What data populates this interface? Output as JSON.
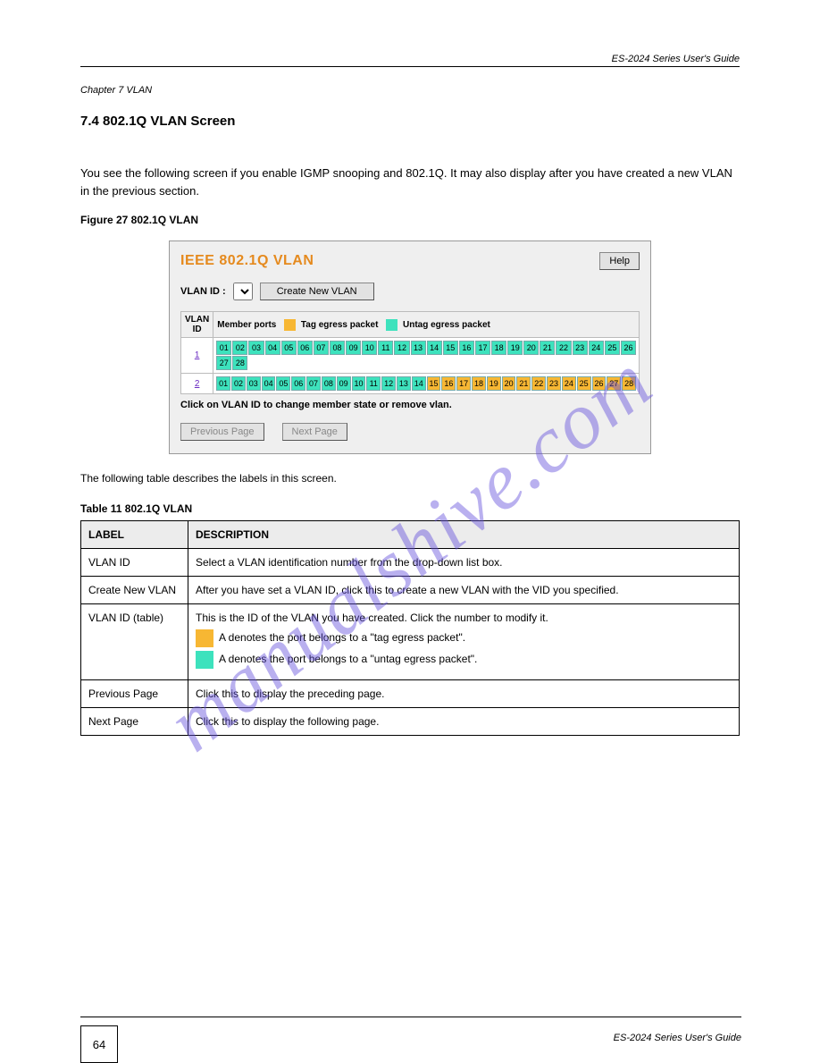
{
  "header": {
    "right_text": "ES-2024 Series User's Guide",
    "chapter_text": "Chapter 7 VLAN"
  },
  "intro": {
    "paragraph": "You see the following screen if you enable IGMP snooping and 802.1Q. It may also display after you have created a new VLAN in the previous section.",
    "section_heading": "7.4 802.1Q VLAN Screen",
    "figure_caption": "Figure 27 802.1Q VLAN"
  },
  "panel": {
    "title": "IEEE 802.1Q VLAN",
    "help_btn": "Help",
    "vlan_id_label": "VLAN ID :",
    "create_btn": "Create New VLAN",
    "legend": {
      "member_ports": "Member ports",
      "tag_label": "Tag egress packet",
      "untag_label": "Untag egress packet",
      "tag_color": "#f7b733",
      "untag_color": "#3de2bd"
    },
    "col_vlanid": "VLAN\nID",
    "rows": [
      {
        "id": "1",
        "ports_a": [
          "01",
          "02",
          "03",
          "04",
          "05",
          "06",
          "07",
          "08",
          "09",
          "10",
          "11",
          "12",
          "13",
          "14",
          "15",
          "16",
          "17",
          "18",
          "19",
          "20",
          "21",
          "22",
          "23",
          "24",
          "25",
          "26"
        ],
        "ports_b": [
          "27",
          "28"
        ],
        "colors_a": [
          "u",
          "u",
          "u",
          "u",
          "u",
          "u",
          "u",
          "u",
          "u",
          "u",
          "u",
          "u",
          "u",
          "u",
          "u",
          "u",
          "u",
          "u",
          "u",
          "u",
          "u",
          "u",
          "u",
          "u",
          "u",
          "u"
        ],
        "colors_b": [
          "u",
          "u"
        ]
      },
      {
        "id": "2",
        "ports_a": [
          "01",
          "02",
          "03",
          "04",
          "05",
          "06",
          "07",
          "08",
          "09",
          "10",
          "11",
          "12",
          "13",
          "14",
          "15",
          "16",
          "17",
          "18",
          "19",
          "20",
          "21",
          "22",
          "23",
          "24",
          "25",
          "26",
          "27",
          "28"
        ],
        "colors_a": [
          "u",
          "u",
          "u",
          "u",
          "u",
          "u",
          "u",
          "u",
          "u",
          "u",
          "u",
          "u",
          "u",
          "u",
          "t",
          "t",
          "t",
          "t",
          "t",
          "t",
          "t",
          "t",
          "t",
          "t",
          "t",
          "t",
          "t",
          "t"
        ]
      }
    ],
    "hint": "Click on VLAN ID to change member state or remove vlan.",
    "prev_btn": "Previous Page",
    "next_btn": "Next Page"
  },
  "table": {
    "caption": "The following table describes the labels in this screen.",
    "title_row": "Table 11 802.1Q VLAN",
    "head_label": "LABEL",
    "head_desc": "DESCRIPTION",
    "rows": [
      {
        "label": "VLAN ID",
        "desc": "Select a VLAN identification number from the drop-down list box."
      },
      {
        "label": "Create New VLAN",
        "desc": "After you have set a VLAN ID, click this to create a new VLAN with the VID you specified."
      },
      {
        "label": "VLAN ID (table)",
        "desc_lead": "This is the ID of the VLAN you have created. Click the number to modify it.",
        "bullets": [
          {
            "color": "#f7b733",
            "text": "A denotes the port belongs to a \"tag egress packet\"."
          },
          {
            "color": "#3de2bd",
            "text": "A denotes the port belongs to a \"untag egress packet\"."
          }
        ]
      },
      {
        "label": "Previous Page",
        "desc": "Click this to display the preceding page."
      },
      {
        "label": "Next Page",
        "desc": "Click this to display the following page."
      }
    ]
  },
  "footer": {
    "page_number": "64",
    "right_text": "ES-2024 Series User's Guide"
  },
  "watermark": "manualshive.com"
}
